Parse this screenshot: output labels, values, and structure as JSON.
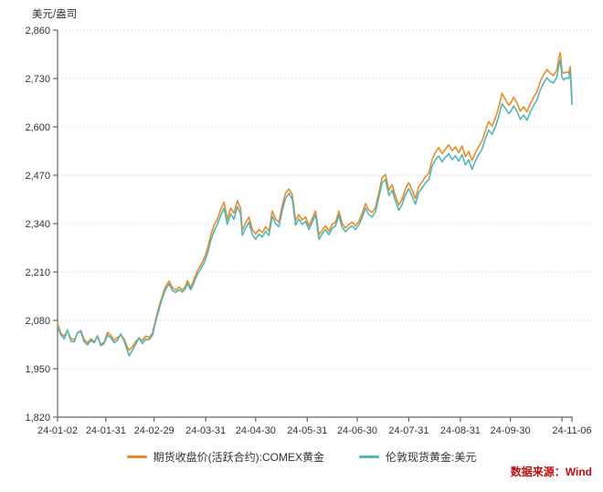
{
  "header": {
    "unit_label": "美元/盎司"
  },
  "source": {
    "label": "数据来源：Wind",
    "color": "#C00D0D"
  },
  "legend": [
    {
      "label": "期货收盘价(活跃合约):COMEX黄金",
      "color": "#ED8A24"
    },
    {
      "label": "伦敦现货黄金:美元",
      "color": "#4FB6B9"
    }
  ],
  "colors": {
    "axis": "#666666",
    "grid": "#d9d9d9",
    "tick_text": "#333333"
  },
  "chart_data": {
    "type": "line",
    "title": "",
    "xlabel": "",
    "ylabel": "美元/盎司",
    "ylim": [
      1820,
      2860
    ],
    "y_ticks": [
      "2,860",
      "2,730",
      "2,600",
      "2,470",
      "2,340",
      "2,210",
      "2,080",
      "1,950",
      "1,820"
    ],
    "y_tick_values": [
      2860,
      2730,
      2600,
      2470,
      2340,
      2210,
      2080,
      1950,
      1820
    ],
    "grid": "horizontal-dotted",
    "legend_position": "bottom-center",
    "x_unit": "days since 2024-01-02",
    "x_range_days": [
      0,
      309
    ],
    "x_ticks": [
      {
        "day": 0,
        "label": "24-01-02"
      },
      {
        "day": 29,
        "label": "24-01-31"
      },
      {
        "day": 58,
        "label": "24-02-29"
      },
      {
        "day": 89,
        "label": "24-03-31"
      },
      {
        "day": 119,
        "label": "24-04-30"
      },
      {
        "day": 150,
        "label": "24-05-31"
      },
      {
        "day": 180,
        "label": "24-06-30"
      },
      {
        "day": 211,
        "label": "24-07-31"
      },
      {
        "day": 242,
        "label": "24-08-31"
      },
      {
        "day": 272,
        "label": "24-09-30"
      },
      {
        "day": 303,
        "label": ""
      },
      {
        "day": 309,
        "label": "24-11-06"
      }
    ],
    "days": [
      0,
      2,
      4,
      6,
      8,
      10,
      12,
      14,
      16,
      18,
      20,
      22,
      24,
      26,
      28,
      30,
      32,
      34,
      36,
      38,
      40,
      42,
      43,
      45,
      47,
      49,
      51,
      53,
      55,
      57,
      59,
      61,
      63,
      65,
      67,
      69,
      71,
      73,
      75,
      77,
      78,
      80,
      82,
      84,
      86,
      88,
      90,
      92,
      94,
      96,
      98,
      100,
      102,
      104,
      106,
      108,
      110,
      111,
      113,
      115,
      117,
      119,
      121,
      123,
      125,
      127,
      129,
      131,
      133,
      135,
      137,
      139,
      141,
      143,
      145,
      147,
      149,
      151,
      153,
      155,
      157,
      159,
      161,
      163,
      165,
      167,
      169,
      171,
      173,
      175,
      177,
      179,
      181,
      183,
      185,
      187,
      189,
      191,
      193,
      195,
      197,
      199,
      201,
      203,
      205,
      207,
      209,
      211,
      213,
      215,
      217,
      219,
      221,
      223,
      225,
      227,
      229,
      231,
      233,
      235,
      237,
      239,
      241,
      243,
      245,
      247,
      249,
      251,
      253,
      255,
      257,
      259,
      261,
      263,
      265,
      267,
      269,
      271,
      272,
      274,
      276,
      278,
      280,
      282,
      284,
      286,
      288,
      290,
      292,
      294,
      296,
      298,
      300,
      301,
      302,
      303,
      304,
      305,
      306,
      307,
      308,
      309
    ],
    "series": [
      {
        "name": "期货收盘价(活跃合约):COMEX黄金",
        "color": "#ED8A24",
        "values": [
          2073,
          2045,
          2038,
          2052,
          2032,
          2027,
          2046,
          2053,
          2028,
          2020,
          2031,
          2023,
          2036,
          2016,
          2021,
          2048,
          2040,
          2026,
          2034,
          2040,
          2030,
          2008,
          2000,
          2009,
          2024,
          2031,
          2026,
          2038,
          2034,
          2046,
          2084,
          2118,
          2148,
          2172,
          2186,
          2168,
          2161,
          2169,
          2162,
          2173,
          2187,
          2168,
          2190,
          2214,
          2228,
          2246,
          2272,
          2308,
          2336,
          2352,
          2378,
          2398,
          2352,
          2382,
          2368,
          2402,
          2380,
          2322,
          2342,
          2358,
          2324,
          2312,
          2324,
          2316,
          2332,
          2320,
          2374,
          2352,
          2344,
          2390,
          2422,
          2433,
          2418,
          2348,
          2364,
          2350,
          2358,
          2334,
          2354,
          2374,
          2310,
          2322,
          2334,
          2320,
          2338,
          2344,
          2374,
          2340,
          2328,
          2338,
          2344,
          2334,
          2346,
          2368,
          2394,
          2376,
          2370,
          2384,
          2422,
          2464,
          2472,
          2430,
          2444,
          2414,
          2390,
          2406,
          2434,
          2450,
          2430,
          2408,
          2440,
          2452,
          2466,
          2476,
          2512,
          2532,
          2544,
          2528,
          2540,
          2552,
          2536,
          2546,
          2530,
          2549,
          2520,
          2534,
          2510,
          2530,
          2548,
          2562,
          2590,
          2614,
          2602,
          2624,
          2652,
          2690,
          2674,
          2658,
          2662,
          2680,
          2664,
          2642,
          2654,
          2640,
          2662,
          2680,
          2694,
          2722,
          2740,
          2754,
          2744,
          2738,
          2754,
          2782,
          2800,
          2750,
          2744,
          2746,
          2748,
          2744,
          2762,
          2672
        ]
      },
      {
        "name": "伦敦现货黄金:美元",
        "color": "#4FB6B9",
        "values": [
          2064,
          2041,
          2030,
          2055,
          2024,
          2022,
          2048,
          2049,
          2022,
          2014,
          2026,
          2020,
          2039,
          2012,
          2018,
          2040,
          2034,
          2020,
          2026,
          2044,
          2024,
          1998,
          1985,
          2000,
          2016,
          2034,
          2018,
          2030,
          2028,
          2040,
          2078,
          2110,
          2140,
          2164,
          2178,
          2160,
          2155,
          2162,
          2156,
          2166,
          2180,
          2162,
          2182,
          2204,
          2218,
          2234,
          2258,
          2294,
          2320,
          2338,
          2362,
          2382,
          2338,
          2366,
          2352,
          2386,
          2366,
          2308,
          2328,
          2344,
          2310,
          2298,
          2312,
          2304,
          2320,
          2308,
          2360,
          2340,
          2332,
          2376,
          2408,
          2422,
          2406,
          2336,
          2352,
          2338,
          2346,
          2324,
          2344,
          2364,
          2298,
          2312,
          2324,
          2310,
          2328,
          2334,
          2362,
          2330,
          2318,
          2328,
          2334,
          2324,
          2336,
          2356,
          2382,
          2364,
          2358,
          2372,
          2410,
          2450,
          2458,
          2416,
          2430,
          2400,
          2376,
          2392,
          2418,
          2434,
          2414,
          2392,
          2424,
          2436,
          2450,
          2458,
          2494,
          2512,
          2522,
          2506,
          2518,
          2528,
          2512,
          2522,
          2508,
          2526,
          2498,
          2512,
          2486,
          2508,
          2526,
          2540,
          2568,
          2592,
          2580,
          2600,
          2628,
          2662,
          2650,
          2636,
          2640,
          2656,
          2642,
          2620,
          2632,
          2618,
          2640,
          2658,
          2672,
          2700,
          2718,
          2732,
          2722,
          2718,
          2734,
          2762,
          2780,
          2734,
          2726,
          2730,
          2732,
          2730,
          2750,
          2660
        ]
      }
    ]
  }
}
